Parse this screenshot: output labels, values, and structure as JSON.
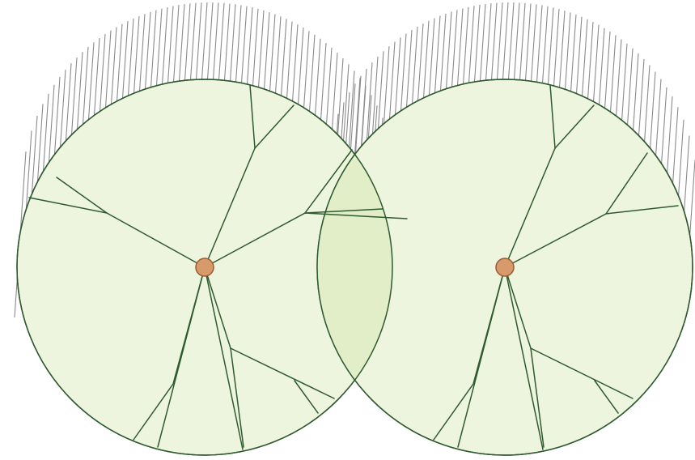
{
  "diagram": {
    "type": "overlapping-tree-canopies",
    "trees": [
      {
        "name": "tree-left"
      },
      {
        "name": "tree-right"
      }
    ],
    "colors": {
      "canopy_fill": "#eef5df",
      "canopy_stroke": "#2f5a2f",
      "overlap_fill": "#e2eec8",
      "branch": "#2f5a2f",
      "trunk_fill": "#d69a6b",
      "trunk_stroke": "#9a5a32",
      "hatch": "#8a8a8a",
      "background": "#ffffff"
    }
  }
}
